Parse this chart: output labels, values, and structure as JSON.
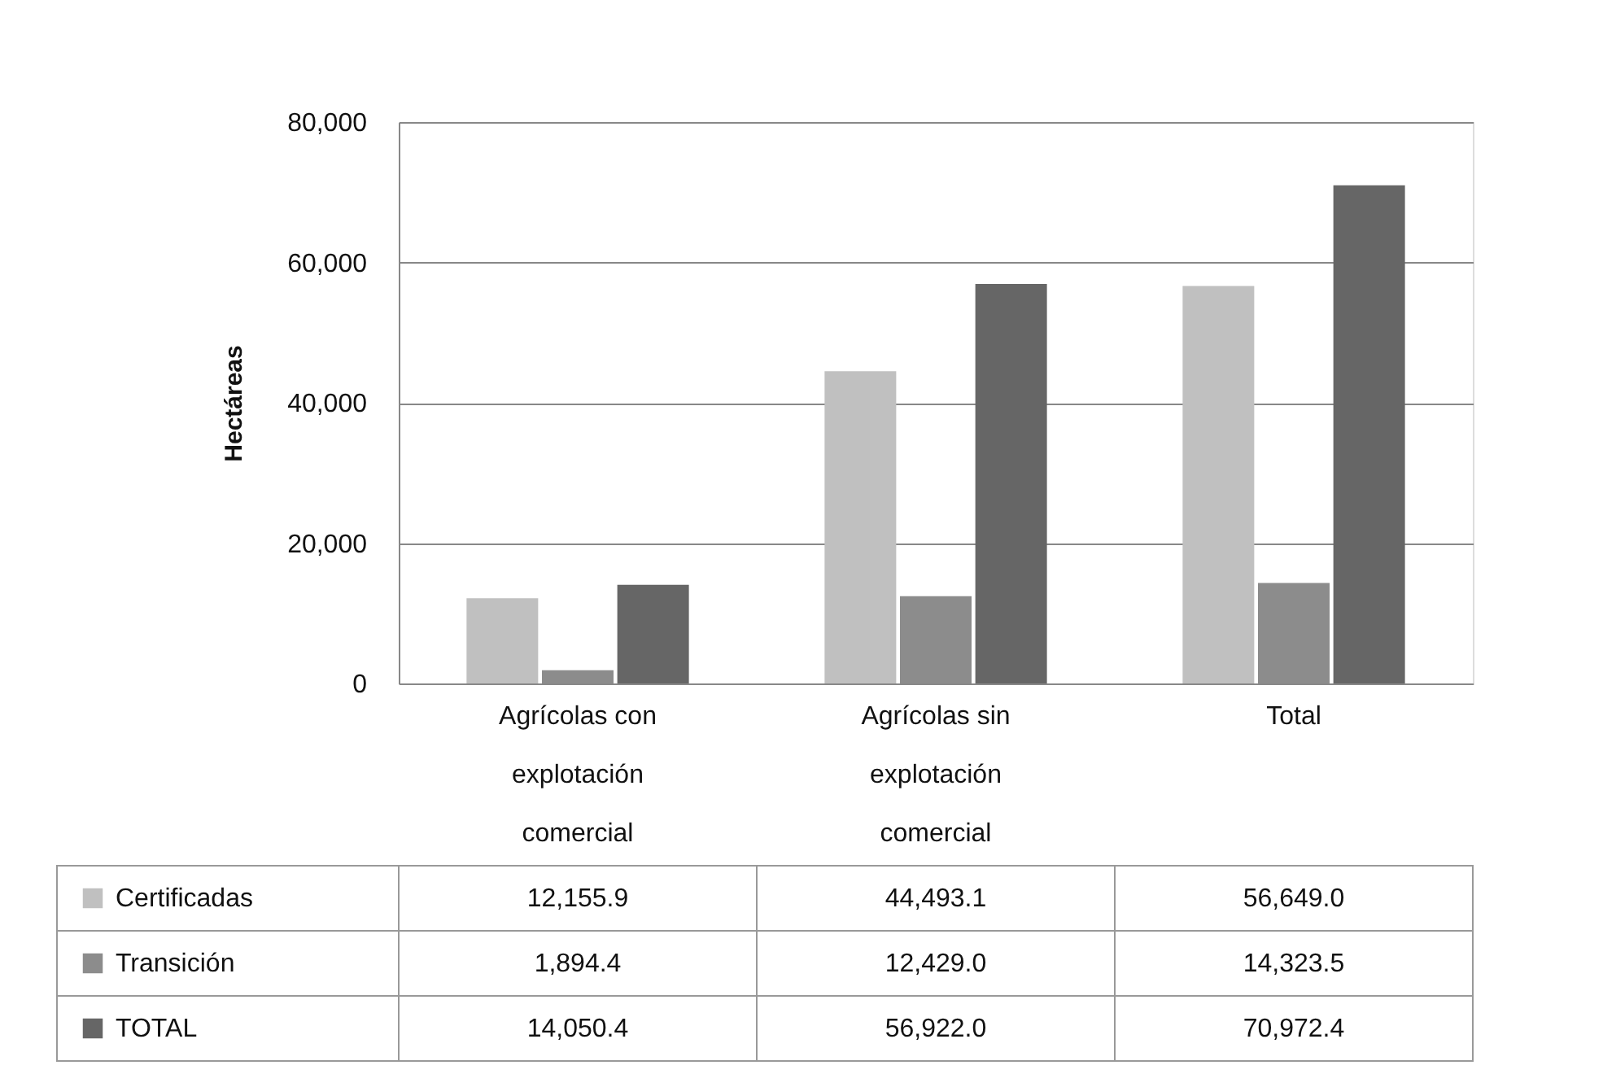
{
  "chart_data": {
    "type": "bar",
    "ylabel": "Hectáreas",
    "categories": [
      "Agrícolas con explotación comercial",
      "Agrícolas sin explotación comercial",
      "Total"
    ],
    "series": [
      {
        "name": "Certificadas",
        "color": "#c0c0c0",
        "values": [
          12155.9,
          44493.1,
          56649.0
        ],
        "value_labels": [
          "12,155.9",
          "44,493.1",
          "56,649.0"
        ]
      },
      {
        "name": "Transición",
        "color": "#8c8c8c",
        "values": [
          1894.4,
          12429.0,
          14323.5
        ],
        "value_labels": [
          "1,894.4",
          "12,429.0",
          "14,323.5"
        ]
      },
      {
        "name": "TOTAL",
        "color": "#666666",
        "values": [
          14050.4,
          56922.0,
          70972.4
        ],
        "value_labels": [
          "14,050.4",
          "56,922.0",
          "70,972.4"
        ]
      }
    ],
    "ylim": [
      0,
      80000
    ],
    "yticks": [
      0,
      {
        "value": 20000,
        "label": "20,000"
      },
      {
        "value": 40000,
        "label": "40,000"
      },
      {
        "value": 60000,
        "label": "60,000"
      },
      {
        "value": 80000,
        "label": "80,000"
      }
    ],
    "grid": "y",
    "legend": "bottom"
  }
}
